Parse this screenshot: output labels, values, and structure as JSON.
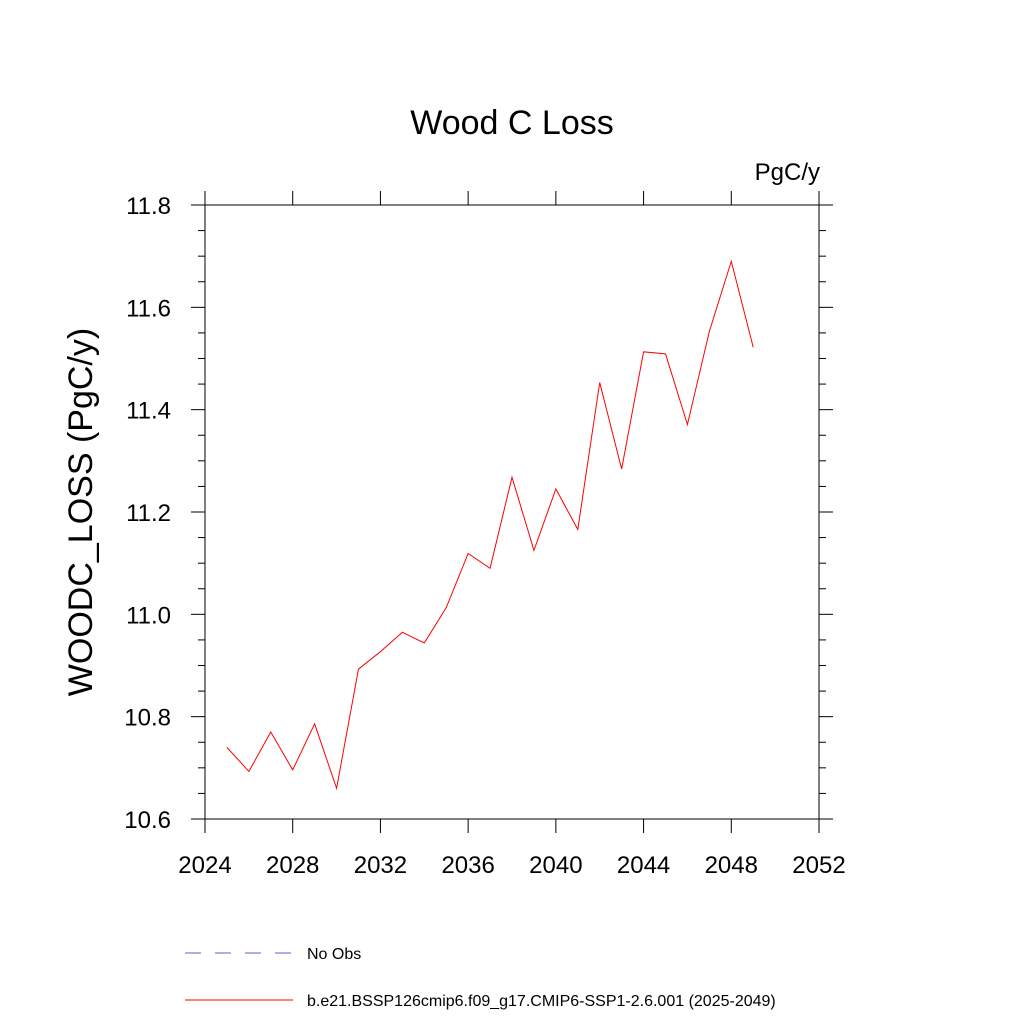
{
  "chart_data": {
    "type": "line",
    "title": "Wood C Loss",
    "units_label": "PgC/y",
    "ylabel": "WOODC_LOSS  (PgC/y)",
    "xlabel": "",
    "xlim": [
      2024,
      2052
    ],
    "ylim": [
      10.6,
      11.8
    ],
    "x_ticks": [
      2024,
      2028,
      2032,
      2036,
      2040,
      2044,
      2048,
      2052
    ],
    "x_tick_labels": [
      "2024",
      "2028",
      "2032",
      "2036",
      "2040",
      "2044",
      "2048",
      "2052"
    ],
    "y_ticks": [
      10.6,
      10.8,
      11.0,
      11.2,
      11.4,
      11.6,
      11.8
    ],
    "y_tick_labels": [
      "10.6",
      "10.8",
      "11.0",
      "11.2",
      "11.4",
      "11.6",
      "11.8"
    ],
    "grid": false,
    "legend_position": "bottom",
    "series": [
      {
        "name": "No Obs",
        "color": "#6a5acd",
        "dash": true,
        "x": [],
        "y": []
      },
      {
        "name": "b.e21.BSSP126cmip6.f09_g17.CMIP6-SSP1-2.6.001 (2025-2049)",
        "color": "#ff0000",
        "dash": false,
        "x": [
          2025,
          2026,
          2027,
          2028,
          2029,
          2030,
          2031,
          2032,
          2033,
          2034,
          2035,
          2036,
          2037,
          2038,
          2039,
          2040,
          2041,
          2042,
          2043,
          2044,
          2045,
          2046,
          2047,
          2048,
          2049
        ],
        "y": [
          10.74,
          10.693,
          10.77,
          10.696,
          10.786,
          10.66,
          10.893,
          10.927,
          10.965,
          10.944,
          11.013,
          11.119,
          11.09,
          11.268,
          11.125,
          11.245,
          11.166,
          11.453,
          11.284,
          11.513,
          11.509,
          11.371,
          11.553,
          11.69,
          11.522
        ]
      }
    ]
  }
}
